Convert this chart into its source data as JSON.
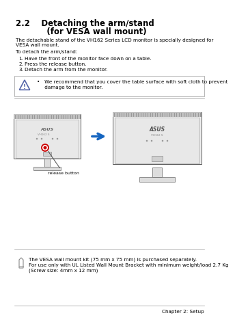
{
  "title_line1": "2.2    Detaching the arm/stand",
  "title_line2": "           (for VESA wall mount)",
  "body_text1": "The detachable stand of the VH162 Series LCD monitor is specially designed for",
  "body_text1b": "VESA wall mount.",
  "body_text2": "To detach the arm/stand:",
  "steps": [
    "Have the front of the monitor face down on a table.",
    "Press the release button.",
    "Detach the arm from the monitor."
  ],
  "warning_text1": "•   We recommend that you cover the table surface with soft cloth to prevent",
  "warning_text2": "     damage to the monitor.",
  "note_text1": "The VESA wall mount kit (75 mm x 75 mm) is purchased separately.",
  "note_text2": "For use only with UL Listed Wall Mount Bracket with minimum weight/load 2.7 Kg",
  "note_text3": "(Screw size: 4mm x 12 mm)",
  "footer_text": "Chapter 2: Setup",
  "release_button_label": "release button",
  "bg_color": "#ffffff",
  "text_color": "#000000",
  "title_color": "#000000",
  "warning_border_color": "#aaaaaa",
  "arrow_color": "#1565c0",
  "release_circle_color": "#cc0000",
  "gray_line_color": "#999999"
}
